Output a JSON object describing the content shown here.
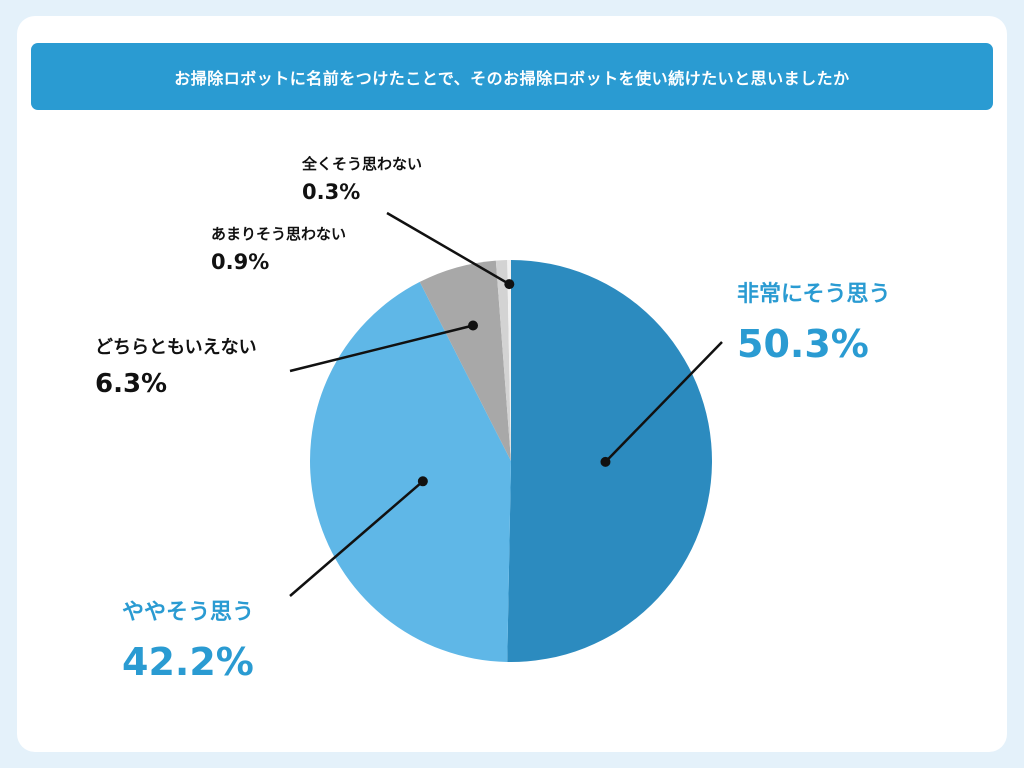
{
  "title": "お掃除ロボットに名前をつけたことで、そのお掃除ロボットを使い続けたいと思いましたか",
  "chart_data": {
    "type": "pie",
    "title": "お掃除ロボットに名前をつけたことで、そのお掃除ロボットを使い続けたいと思いましたか",
    "slices": [
      {
        "label": "非常にそう思う",
        "value": 50.3,
        "display": "50.3%",
        "color": "#2c8bbf"
      },
      {
        "label": "ややそう思う",
        "value": 42.2,
        "display": "42.2%",
        "color": "#5fb7e7"
      },
      {
        "label": "どちらともいえない",
        "value": 6.3,
        "display": "6.3%",
        "color": "#a8a8a8"
      },
      {
        "label": "あまりそう思わない",
        "value": 0.9,
        "display": "0.9%",
        "color": "#d3d3d3"
      },
      {
        "label": "全くそう思わない",
        "value": 0.3,
        "display": "0.3%",
        "color": "#f1f1f1"
      }
    ],
    "start": "12 o'clock",
    "direction": "clockwise",
    "legend": "none"
  }
}
